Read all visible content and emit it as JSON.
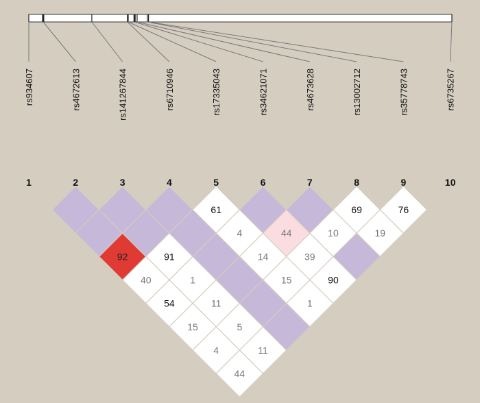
{
  "snps": [
    {
      "num": "1",
      "name": "rs934607",
      "track_pos": 0.0
    },
    {
      "num": "2",
      "name": "rs4672613",
      "track_pos": 0.034
    },
    {
      "num": "3",
      "name": "rs141267844",
      "track_pos": 0.149
    },
    {
      "num": "4",
      "name": "rs6710946",
      "track_pos": 0.233
    },
    {
      "num": "5",
      "name": "rs17335043",
      "track_pos": 0.235
    },
    {
      "num": "6",
      "name": "rs34621071",
      "track_pos": 0.25
    },
    {
      "num": "7",
      "name": "rs4673628",
      "track_pos": 0.256
    },
    {
      "num": "8",
      "name": "rs13002712",
      "track_pos": 0.28
    },
    {
      "num": "9",
      "name": "rs35778743",
      "track_pos": 0.283
    },
    {
      "num": "10",
      "name": "rs6735267",
      "track_pos": 1.0
    }
  ],
  "ld_cells": [
    {
      "i": 1,
      "j": 2,
      "color": "#c5b8d8",
      "value": ""
    },
    {
      "i": 2,
      "j": 3,
      "color": "#c5b8d8",
      "value": ""
    },
    {
      "i": 3,
      "j": 4,
      "color": "#c5b8d8",
      "value": ""
    },
    {
      "i": 4,
      "j": 5,
      "color": "#ffffff",
      "value": "61",
      "text_color": "#111111"
    },
    {
      "i": 5,
      "j": 6,
      "color": "#c5b8d8",
      "value": ""
    },
    {
      "i": 6,
      "j": 7,
      "color": "#c5b8d8",
      "value": ""
    },
    {
      "i": 7,
      "j": 8,
      "color": "#ffffff",
      "value": "69",
      "text_color": "#111111"
    },
    {
      "i": 8,
      "j": 9,
      "color": "#ffffff",
      "value": "76",
      "text_color": "#111111"
    },
    {
      "i": 1,
      "j": 3,
      "color": "#c5b8d8",
      "value": ""
    },
    {
      "i": 2,
      "j": 4,
      "color": "#c5b8d8",
      "value": ""
    },
    {
      "i": 3,
      "j": 5,
      "color": "#c5b8d8",
      "value": ""
    },
    {
      "i": 4,
      "j": 6,
      "color": "#ffffff",
      "value": "4",
      "text_color": "#777777"
    },
    {
      "i": 5,
      "j": 7,
      "color": "#fbdde0",
      "value": "44",
      "text_color": "#777777"
    },
    {
      "i": 6,
      "j": 8,
      "color": "#ffffff",
      "value": "10",
      "text_color": "#777777"
    },
    {
      "i": 7,
      "j": 9,
      "color": "#ffffff",
      "value": "19",
      "text_color": "#777777"
    },
    {
      "i": 1,
      "j": 4,
      "color": "#e03a34",
      "value": "92",
      "text_color": "#222222"
    },
    {
      "i": 2,
      "j": 5,
      "color": "#ffffff",
      "value": "91",
      "text_color": "#111111"
    },
    {
      "i": 3,
      "j": 6,
      "color": "#c5b8d8",
      "value": ""
    },
    {
      "i": 4,
      "j": 7,
      "color": "#ffffff",
      "value": "14",
      "text_color": "#777777"
    },
    {
      "i": 5,
      "j": 8,
      "color": "#ffffff",
      "value": "39",
      "text_color": "#777777"
    },
    {
      "i": 6,
      "j": 9,
      "color": "#c5b8d8",
      "value": ""
    },
    {
      "i": 1,
      "j": 5,
      "color": "#ffffff",
      "value": "40",
      "text_color": "#777777"
    },
    {
      "i": 2,
      "j": 6,
      "color": "#ffffff",
      "value": "1",
      "text_color": "#777777"
    },
    {
      "i": 3,
      "j": 7,
      "color": "#c5b8d8",
      "value": ""
    },
    {
      "i": 4,
      "j": 8,
      "color": "#ffffff",
      "value": "15",
      "text_color": "#777777"
    },
    {
      "i": 5,
      "j": 9,
      "color": "#ffffff",
      "value": "90",
      "text_color": "#111111"
    },
    {
      "i": 1,
      "j": 6,
      "color": "#ffffff",
      "value": "54",
      "text_color": "#111111"
    },
    {
      "i": 2,
      "j": 7,
      "color": "#ffffff",
      "value": "11",
      "text_color": "#777777"
    },
    {
      "i": 3,
      "j": 8,
      "color": "#c5b8d8",
      "value": ""
    },
    {
      "i": 4,
      "j": 9,
      "color": "#ffffff",
      "value": "1",
      "text_color": "#777777"
    },
    {
      "i": 1,
      "j": 7,
      "color": "#ffffff",
      "value": "15",
      "text_color": "#777777"
    },
    {
      "i": 2,
      "j": 8,
      "color": "#ffffff",
      "value": "5",
      "text_color": "#777777"
    },
    {
      "i": 3,
      "j": 9,
      "color": "#c5b8d8",
      "value": ""
    },
    {
      "i": 1,
      "j": 8,
      "color": "#ffffff",
      "value": "4",
      "text_color": "#777777"
    },
    {
      "i": 2,
      "j": 9,
      "color": "#ffffff",
      "value": "11",
      "text_color": "#777777"
    },
    {
      "i": 1,
      "j": 9,
      "color": "#ffffff",
      "value": "44",
      "text_color": "#777777"
    }
  ]
}
